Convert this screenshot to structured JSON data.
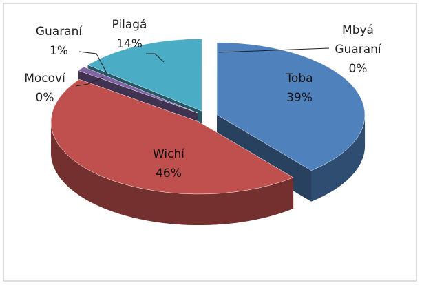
{
  "chart_data": {
    "type": "pie3d",
    "categories": [
      "Toba",
      "Wichí",
      "Mocoví",
      "Guaraní",
      "Pilagá",
      "Mbyá Guaraní"
    ],
    "values": [
      39,
      46,
      0,
      1,
      14,
      0
    ],
    "value_labels": [
      "39%",
      "46%",
      "0%",
      "1%",
      "14%",
      "0%"
    ],
    "colors": [
      "#4f81bd",
      "#c0504d",
      "#9bbb59",
      "#8064a2",
      "#4bacc6",
      "#f79646"
    ]
  }
}
